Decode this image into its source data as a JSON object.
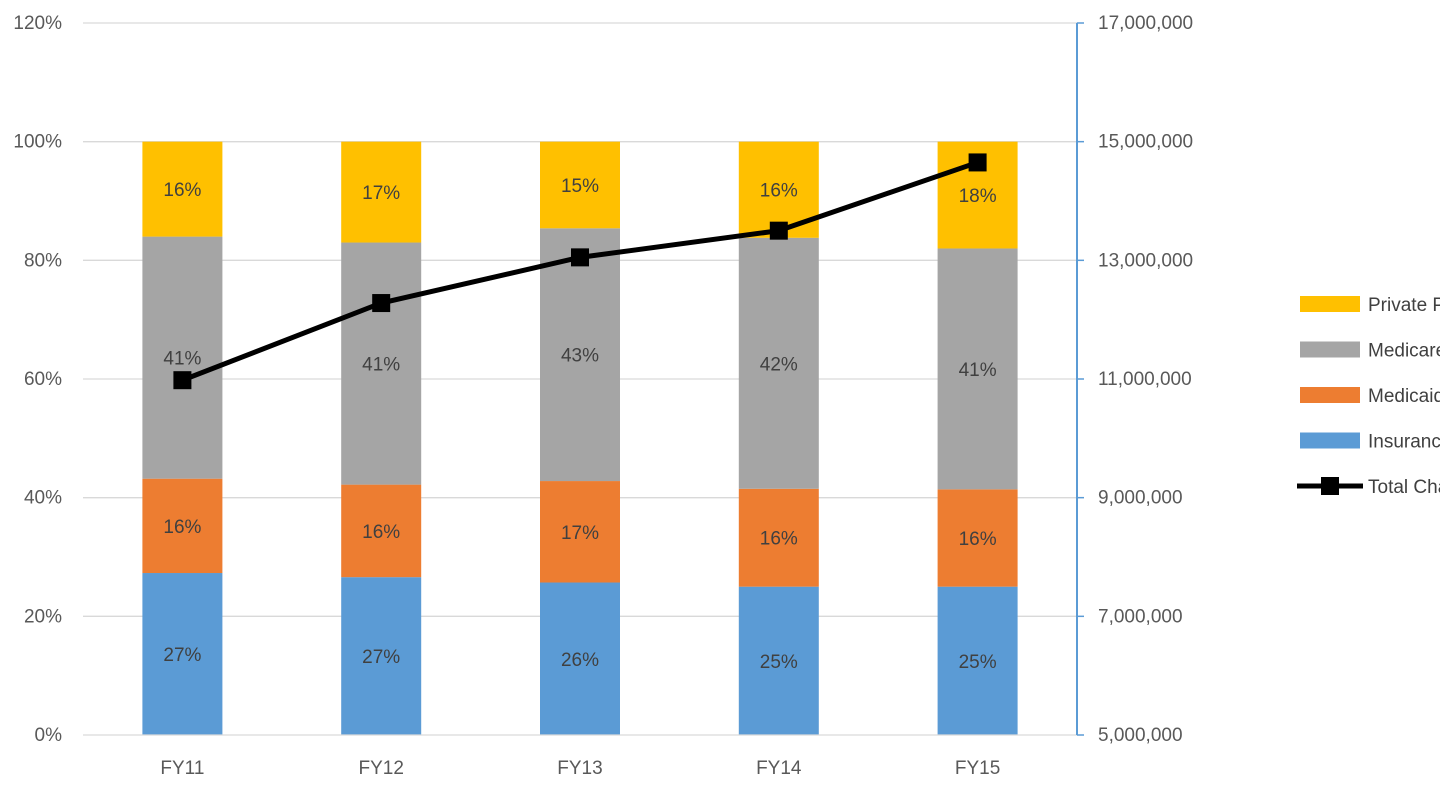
{
  "chart_data": {
    "type": "bar",
    "stacked": true,
    "title": "",
    "xlabel": "",
    "ylabel": "",
    "categories": [
      "FY11",
      "FY12",
      "FY13",
      "FY14",
      "FY15"
    ],
    "y_left": {
      "range": [
        0,
        120
      ],
      "ticks": [
        0,
        20,
        40,
        60,
        80,
        100,
        120
      ],
      "tick_labels": [
        "0%",
        "20%",
        "40%",
        "60%",
        "80%",
        "100%",
        "120%"
      ]
    },
    "y_right": {
      "range": [
        5000000,
        17000000
      ],
      "ticks": [
        5000000,
        7000000,
        9000000,
        11000000,
        13000000,
        15000000,
        17000000
      ],
      "tick_labels": [
        "5,000,000",
        "7,000,000",
        "9,000,000",
        "11,000,000",
        "13,000,000",
        "15,000,000",
        "17,000,000"
      ]
    },
    "grid": true,
    "legend_position": "right",
    "series": [
      {
        "name": "Insurance",
        "type": "bar",
        "color": "#5B9BD5",
        "values": [
          27.3,
          26.6,
          25.7,
          25.0,
          25.0
        ],
        "labels": [
          "27%",
          "27%",
          "26%",
          "25%",
          "25%"
        ]
      },
      {
        "name": "Medicaid",
        "type": "bar",
        "color": "#ED7D31",
        "values": [
          15.9,
          15.6,
          17.1,
          16.5,
          16.4
        ],
        "labels": [
          "16%",
          "16%",
          "17%",
          "16%",
          "16%"
        ]
      },
      {
        "name": "Medicare",
        "type": "bar",
        "color": "#A5A5A5",
        "values": [
          40.8,
          40.8,
          42.6,
          42.3,
          40.6
        ],
        "labels": [
          "41%",
          "41%",
          "43%",
          "42%",
          "41%"
        ]
      },
      {
        "name": "Private Pay",
        "type": "bar",
        "color": "#FFC000",
        "values": [
          16.0,
          17.0,
          14.6,
          16.2,
          18.0
        ],
        "labels": [
          "16%",
          "17%",
          "15%",
          "16%",
          "18%"
        ]
      },
      {
        "name": "Total Charges",
        "type": "line",
        "axis": "right",
        "color": "#000000",
        "marker": "square",
        "values": [
          10980000,
          12280000,
          13050000,
          13500000,
          14650000
        ]
      }
    ]
  }
}
